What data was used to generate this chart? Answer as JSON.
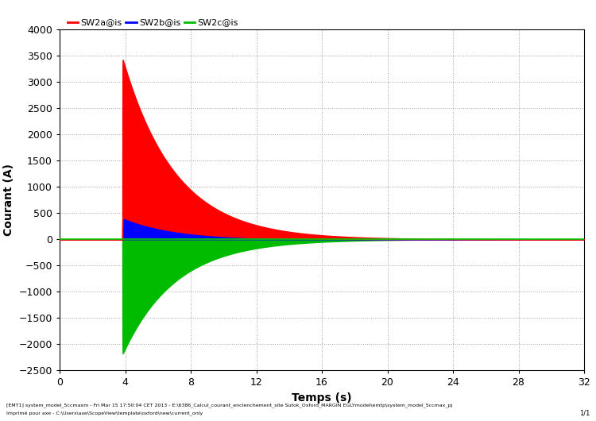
{
  "xlabel": "Temps (s)",
  "ylabel": "Courant (A)",
  "xlim": [
    0,
    32
  ],
  "ylim": [
    -2500,
    4000
  ],
  "xticks": [
    0,
    4,
    8,
    12,
    16,
    20,
    24,
    28,
    32
  ],
  "yticks": [
    -2500,
    -2000,
    -1500,
    -1000,
    -500,
    0,
    500,
    1000,
    1500,
    2000,
    2500,
    3000,
    3500,
    4000
  ],
  "legend_labels": [
    "SW2a@is",
    "SW2b@is",
    "SW2c@is"
  ],
  "color_a": "#ff0000",
  "color_b": "#0000ff",
  "color_c": "#00bb00",
  "color_zero": "#00cc00",
  "t_start": 3.83,
  "peak_a": 3460,
  "peak_b": 420,
  "peak_c": -2200,
  "tau_a": 3.2,
  "tau_b": 3.2,
  "tau_c": 3.2,
  "footer_left": "[EMT1] system_model_5ccmaxm - Fri Mar 15 17:50:04 CET 2013 - E:\\6386_Calcul_courant_enclenchement_site Sutok_Oxford_MARGIN EGLYmodel\\emtp\\system_model_5ccmax_pj",
  "footer_left2": "Imprimé pour axe - C:\\Users\\axe\\ScopeView\\template\\oxford\\new\\current_only",
  "footer_right": "1/1",
  "background_color": "#ffffff",
  "grid_color": "#999999",
  "fig_width": 7.5,
  "fig_height": 5.3,
  "dpi": 100
}
